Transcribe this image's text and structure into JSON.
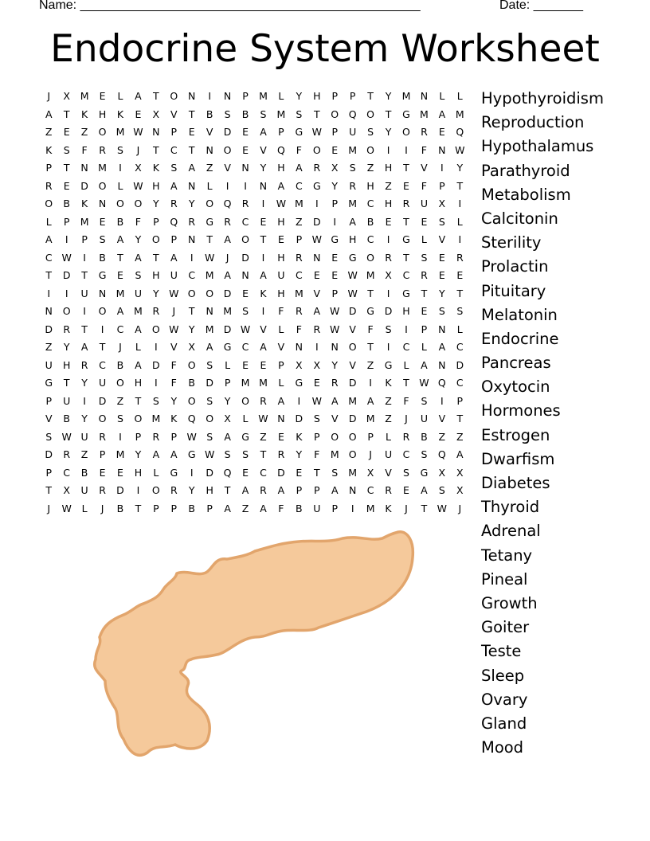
{
  "header": {
    "name_label": "Name: ________________________________________________",
    "date_label": "Date: _______"
  },
  "title": "Endocrine System Worksheet",
  "grid": [
    "JXMELATONINPMLYHPPTYMNLL",
    "ATKHKEXVTBSBSMSTOQOTGMAM",
    "ZEZOMWNPEVDEAPGWPUSYOREQ",
    "KSFRSJTCTNOEVQFOEMOIIFNW",
    "PTNMIXKSAZVNYHARXSZHTVIY",
    "REDOLWHANLIINACGYRHZEFPT",
    "OBKNOOYRYOQRIWMIPMCHRUXI",
    "LPMEBFPQRGRCEHZDIABETESL",
    "AIPSAYOPNTAOTEPWGHCIGLVI",
    "CWIBTATAIWJDIHRNEGORTSER",
    "TDTGESHUCMANAUCEEWMXCREE",
    "IIUNMUYWOODEKHMVPWTIGTYT",
    "NOIOAMRJTNMSIFRAWDGDHESS",
    "DRTICAOWYMDWVLFRWVFSIPNL",
    "ZYATJLIVXAGCAVNINOTICLAC",
    "UHRCBADFOSLEEPXXYVZGLAND",
    "GTYUOHIFBDPMMLGERDIKTWQC",
    "PUIDZTSYOSYORAIWAMAZFSIP",
    "VBYOSOMKQOXLWNDSVDMZJUVT",
    "SWURIPRPWSAGZEKPOOPLRBZZ",
    "DRZPMYAAGWSSTRYFMOJUCSQA",
    "PCBEEHLGIDQECDETSMXVSGXX",
    "TXURDIORYHTARAPPANCREASX",
    "JWLJBTPPBPAZAFBUPIMKJTWJ"
  ],
  "words": [
    "Hypothyroidism",
    "Reproduction",
    "Hypothalamus",
    "Parathyroid",
    "Metabolism",
    "Calcitonin",
    "Sterility",
    "Prolactin",
    "Pituitary",
    "Melatonin",
    "Endocrine",
    "Pancreas",
    "Oxytocin",
    "Hormones",
    "Estrogen",
    "Dwarfism",
    "Diabetes",
    "Thyroid",
    "Adrenal",
    "Tetany",
    "Pineal",
    "Growth",
    "Goiter",
    "Teste",
    "Sleep",
    "Ovary",
    "Gland",
    "Mood"
  ],
  "illustration": {
    "subject": "pancreas",
    "fill": "#F5C99B",
    "stroke": "#E2A56C"
  }
}
